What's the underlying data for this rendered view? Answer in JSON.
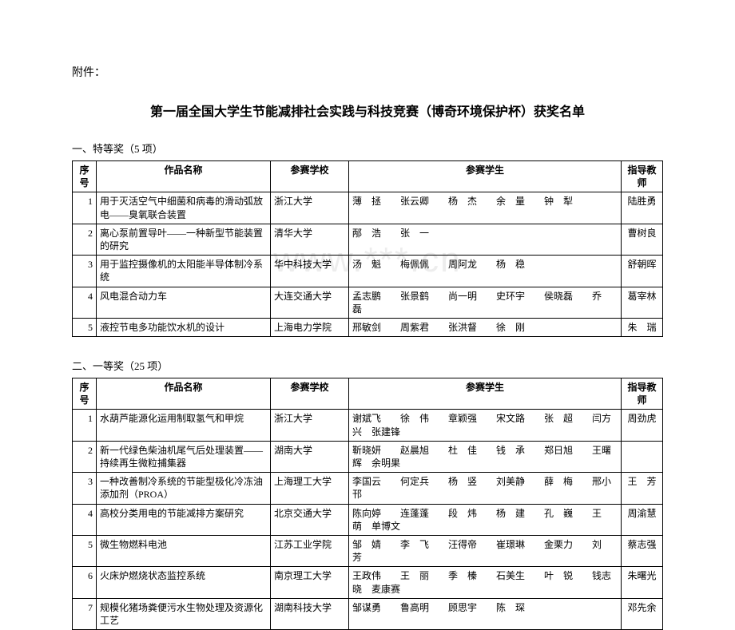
{
  "attachment_label": "附件：",
  "main_title": "第一届全国大学生节能减排社会实践与科技竞赛（博奇环境保护杯）获奖名单",
  "watermark_text": "www.***.cn",
  "columns": {
    "seq": "序号",
    "work": "作品名称",
    "school": "参赛学校",
    "students": "参赛学生",
    "teacher": "指导教师"
  },
  "sections": [
    {
      "label": "一、特等奖（5 项）",
      "rows": [
        {
          "seq": "1",
          "work": "用于灭活空气中细菌和病毒的滑动弧放电——臭氧联合装置",
          "school": "浙江大学",
          "students": "薄　拯　　张云卿　　杨　杰　　余　量　　钟　犁",
          "teacher": "陆胜勇"
        },
        {
          "seq": "2",
          "work": "离心泵前置导叶——一种新型节能装置的研究",
          "school": "清华大学",
          "students": "邴　浩　　张　一",
          "teacher": "曹树良"
        },
        {
          "seq": "3",
          "work": "用于监控摄像机的太阳能半导体制冷系统",
          "school": "华中科技大学",
          "students": "汤　魁　　梅佩佩　　周阿龙　　杨　稳",
          "teacher": "舒朝晖"
        },
        {
          "seq": "4",
          "work": "风电混合动力车",
          "school": "大连交通大学",
          "students": "孟志鹏　　张景鹤　　尚一明　　史环宇　　侯晓磊　　乔　磊",
          "teacher": "葛宰林"
        },
        {
          "seq": "5",
          "work": "液控节电多功能饮水机的设计",
          "school": "上海电力学院",
          "students": "邢敏剑　　周紫君　　张洪督　　徐　刚",
          "teacher": "朱　瑞"
        }
      ]
    },
    {
      "label": "二、一等奖（25 项）",
      "rows": [
        {
          "seq": "1",
          "work": "水葫芦能源化运用制取氢气和甲烷",
          "school": "浙江大学",
          "students": "谢斌飞　　徐　伟　　章颖强　　宋文路　　张　超　　闫方兴　张建锋",
          "teacher": "周劲虎"
        },
        {
          "seq": "2",
          "work": "新一代绿色柴油机尾气后处理装置——持续再生微粒捕集器",
          "school": "湖南大学",
          "students": "靳晓妍　　赵晨旭　　杜　佳　　钱　承　　郑日旭　　王曙辉　余明果",
          "teacher": ""
        },
        {
          "seq": "3",
          "work": "一种改善制冷系统的节能型极化冷冻油添加剂（PROA）",
          "school": "上海理工大学",
          "students": "李国云　　何定兵　　杨　竖　　刘美静　　薛　梅　　邢小邗",
          "teacher": "王　芳"
        },
        {
          "seq": "4",
          "work": "高校分类用电的节能减排方案研究",
          "school": "北京交通大学",
          "students": "陈向婷　　连蓬蓬　　段　炜　　杨　建　　孔　巍　　王　萌　单博文",
          "teacher": "周渝慧"
        },
        {
          "seq": "5",
          "work": "微生物燃料电池",
          "school": "江苏工业学院",
          "students": "邹　婧　　李　飞　　汪得帝　　崔璟琳　　金栗力　　刘　芳",
          "teacher": "蔡志强"
        },
        {
          "seq": "6",
          "work": "火床炉燃烧状态监控系统",
          "school": "南京理工大学",
          "students": "王政伟　　王　丽　　季　榛　　石美生　　叶　锐　　钱志晓　麦康赛",
          "teacher": "朱曙光"
        },
        {
          "seq": "7",
          "work": "规模化猪场粪便污水生物处理及资源化工艺",
          "school": "湖南科技大学",
          "students": "邹谋勇　　鲁高明　　顾思宇　　陈　琛",
          "teacher": "邓先余"
        }
      ]
    }
  ]
}
